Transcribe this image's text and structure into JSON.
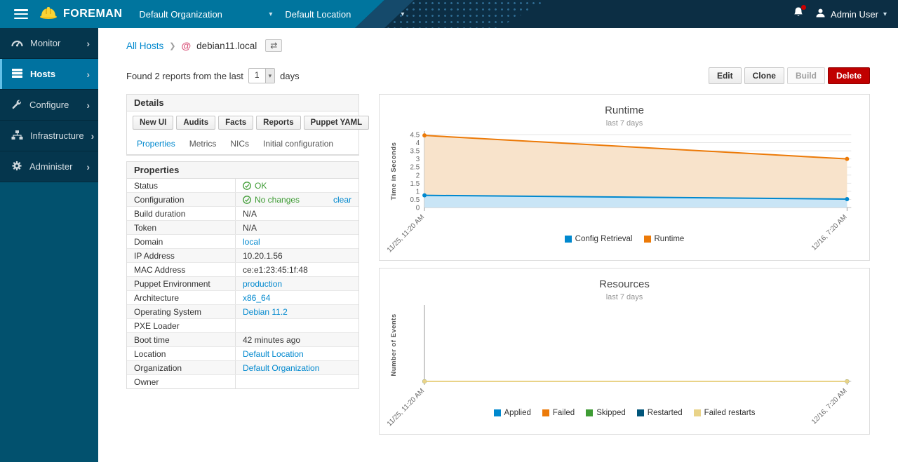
{
  "navbar": {
    "brand": "FOREMAN",
    "organization": "Default Organization",
    "location": "Default Location",
    "user": "Admin User"
  },
  "sidebar": {
    "items": [
      {
        "label": "Monitor",
        "icon": "gauge-icon",
        "active": false
      },
      {
        "label": "Hosts",
        "icon": "server-icon",
        "active": true
      },
      {
        "label": "Configure",
        "icon": "wrench-icon",
        "active": false
      },
      {
        "label": "Infrastructure",
        "icon": "sitemap-icon",
        "active": false
      },
      {
        "label": "Administer",
        "icon": "gear-icon",
        "active": false
      }
    ]
  },
  "breadcrumb": {
    "root": "All Hosts",
    "current": "debian11.local",
    "switcher_icon": "⇄"
  },
  "toolbar": {
    "reports_prefix": "Found 2 reports from the last",
    "days_value": "1",
    "reports_suffix": "days",
    "edit_label": "Edit",
    "clone_label": "Clone",
    "build_label": "Build",
    "delete_label": "Delete"
  },
  "details": {
    "title": "Details",
    "buttons": [
      "New UI",
      "Audits",
      "Facts",
      "Reports",
      "Puppet YAML"
    ],
    "tabs": [
      "Properties",
      "Metrics",
      "NICs",
      "Initial configuration"
    ],
    "active_tab": "Properties"
  },
  "properties": {
    "title": "Properties",
    "rows": [
      {
        "label": "Status",
        "value": "OK",
        "type": "status"
      },
      {
        "label": "Configuration",
        "value": "No changes",
        "type": "status",
        "action": "clear"
      },
      {
        "label": "Build duration",
        "value": "N/A",
        "type": "text"
      },
      {
        "label": "Token",
        "value": "N/A",
        "type": "text"
      },
      {
        "label": "Domain",
        "value": "local",
        "type": "link"
      },
      {
        "label": "IP Address",
        "value": "10.20.1.56",
        "type": "text"
      },
      {
        "label": "MAC Address",
        "value": "ce:e1:23:45:1f:48",
        "type": "text"
      },
      {
        "label": "Puppet Environment",
        "value": "production",
        "type": "link"
      },
      {
        "label": "Architecture",
        "value": "x86_64",
        "type": "link"
      },
      {
        "label": "Operating System",
        "value": "Debian 11.2",
        "type": "link"
      },
      {
        "label": "PXE Loader",
        "value": "",
        "type": "text"
      },
      {
        "label": "Boot time",
        "value": "42 minutes ago",
        "type": "text"
      },
      {
        "label": "Location",
        "value": "Default Location",
        "type": "link"
      },
      {
        "label": "Organization",
        "value": "Default Organization",
        "type": "link"
      },
      {
        "label": "Owner",
        "value": "",
        "type": "text"
      }
    ]
  },
  "chart_data": [
    {
      "type": "area",
      "title": "Runtime",
      "subtitle": "last 7 days",
      "ylabel": "Time in Seconds",
      "x_categories": [
        "11/25, 11:20 AM",
        "12/16, 7:20 AM"
      ],
      "y_ticks": [
        0,
        0.5,
        1,
        1.5,
        2,
        2.5,
        3,
        3.5,
        4,
        4.5
      ],
      "ylim": [
        0,
        4.5
      ],
      "grid": true,
      "legend_position": "bottom",
      "series": [
        {
          "name": "Runtime",
          "color": "#ec7a08",
          "fill": "#f8e3cb",
          "values": [
            4.45,
            3.0
          ]
        },
        {
          "name": "Config Retrieval",
          "color": "#0088ce",
          "fill": "#c9e5f6",
          "values": [
            0.75,
            0.52
          ]
        }
      ],
      "legend_order": [
        "Config Retrieval",
        "Runtime"
      ]
    },
    {
      "type": "line",
      "title": "Resources",
      "subtitle": "last 7 days",
      "ylabel": "Number of Events",
      "x_categories": [
        "11/25, 11:20 AM",
        "12/16, 7:20 AM"
      ],
      "y_ticks": [],
      "ylim": [
        0,
        1
      ],
      "grid": false,
      "legend_position": "bottom",
      "series": [
        {
          "name": "Applied",
          "color": "#0088ce",
          "values": [
            0,
            0
          ]
        },
        {
          "name": "Failed",
          "color": "#ec7a08",
          "values": [
            0,
            0
          ]
        },
        {
          "name": "Skipped",
          "color": "#3f9c35",
          "values": [
            0,
            0
          ]
        },
        {
          "name": "Restarted",
          "color": "#00557a",
          "values": [
            0,
            0
          ]
        },
        {
          "name": "Failed restarts",
          "color": "#e9d388",
          "values": [
            0,
            0
          ]
        }
      ]
    }
  ],
  "colors": {
    "accent_blue": "#0088ce",
    "status_green": "#3f9c35",
    "danger_red": "#c00000",
    "navbar_teal": "#00759e",
    "navbar_dark": "#0c2e44",
    "sidebar_dark": "#05364d"
  }
}
